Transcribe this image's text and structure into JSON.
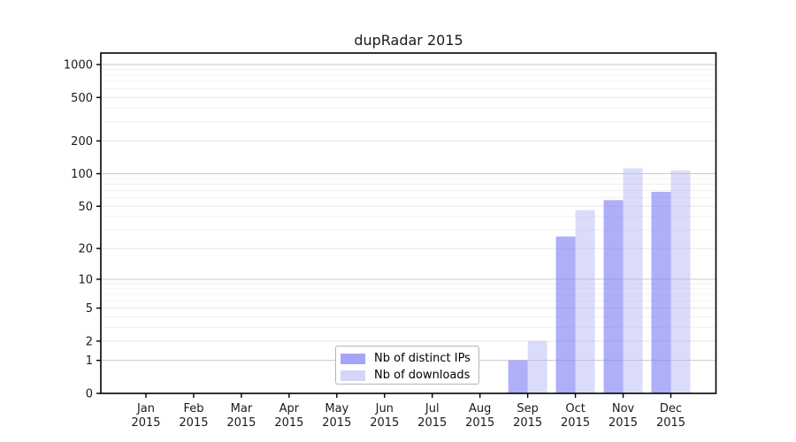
{
  "chart_data": {
    "type": "bar",
    "title": "dupRadar 2015",
    "categories": [
      "Jan",
      "Feb",
      "Mar",
      "Apr",
      "May",
      "Jun",
      "Jul",
      "Aug",
      "Sep",
      "Oct",
      "Nov",
      "Dec"
    ],
    "category_year": "2015",
    "series": [
      {
        "name": "Nb of distinct IPs",
        "color": "#7d7df5",
        "fill_opacity": 0.62,
        "values": [
          0,
          0,
          0,
          0,
          0,
          0,
          0,
          0,
          1,
          26,
          57,
          68
        ]
      },
      {
        "name": "Nb of downloads",
        "color": "#b7b7f6",
        "fill_opacity": 0.5,
        "values": [
          0,
          0,
          0,
          0,
          0,
          0,
          0,
          0,
          2,
          46,
          112,
          107
        ]
      }
    ],
    "y_axis": {
      "scale": "log1p",
      "major_ticks": [
        0,
        1,
        2,
        5,
        10,
        20,
        50,
        100,
        200,
        500,
        1000
      ],
      "minor_ticks": [
        3,
        4,
        6,
        7,
        8,
        9,
        30,
        40,
        60,
        70,
        80,
        90,
        300,
        400,
        600,
        700,
        800,
        900
      ],
      "decade_ticks": [
        1,
        10,
        100,
        1000
      ]
    },
    "legend_position": "bottom-center",
    "grid": true,
    "colors": {
      "decade_gridline": "#c9c9c9",
      "major_gridline": "#e5e5e5",
      "minor_gridline": "#f0f0f0",
      "axis": "#000000",
      "text": "#1a1a1a",
      "legend_border": "#b5b5b5"
    }
  }
}
